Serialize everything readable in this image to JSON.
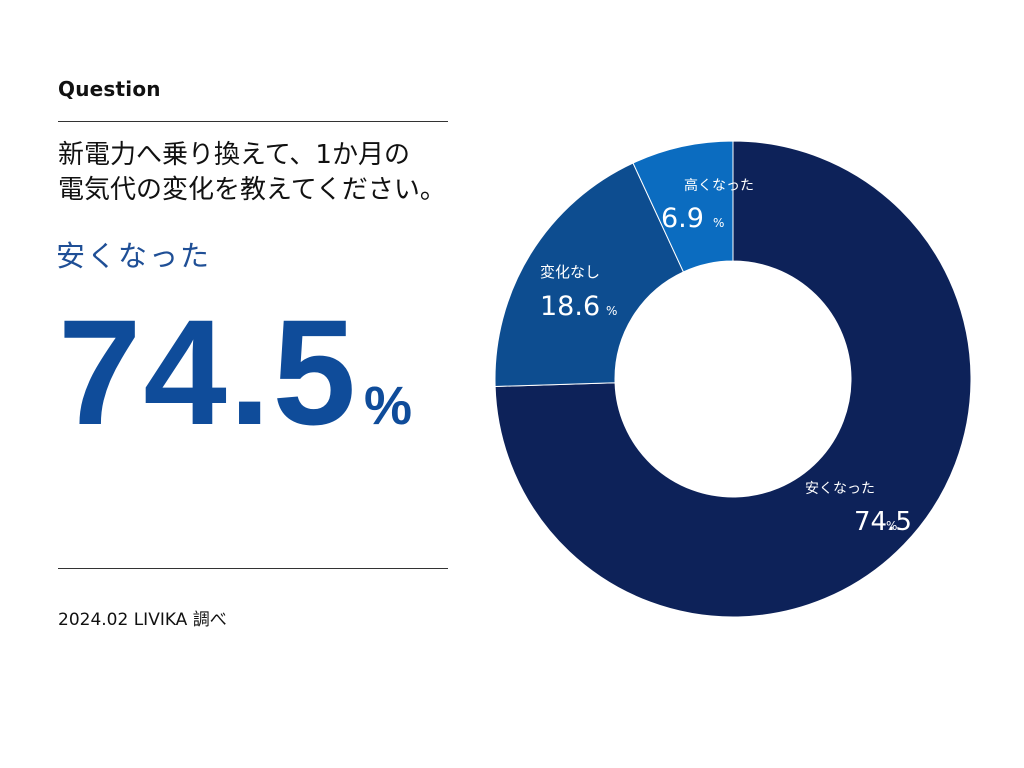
{
  "header": {
    "question_label": "Question"
  },
  "question": {
    "line1": "新電力へ乗り換えて、1か月の",
    "line2": "電気代の変化を教えてください。"
  },
  "highlight": {
    "label": "安くなった",
    "value": "74.5",
    "unit": "%"
  },
  "footer": {
    "source": "2024.02 LIVIKA 調べ"
  },
  "chart_data": {
    "type": "pie",
    "title": "新電力へ乗り換えて、1か月の電気代の変化を教えてください。",
    "categories": [
      "安くなった",
      "変化なし",
      "高くなった"
    ],
    "values": [
      74.5,
      18.6,
      6.9
    ],
    "value_labels": [
      "74.5",
      "18.6",
      "6.9"
    ],
    "unit": "%",
    "colors": [
      "#0d2259",
      "#0d4d90",
      "#0b6cc0"
    ],
    "legend": "none"
  }
}
